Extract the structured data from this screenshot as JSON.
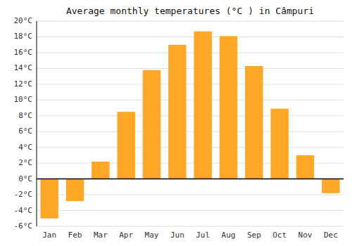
{
  "chart_data": {
    "type": "bar",
    "title": "Average monthly temperatures (°C ) in Câmpuri",
    "categories": [
      "Jan",
      "Feb",
      "Mar",
      "Apr",
      "May",
      "Jun",
      "Jul",
      "Aug",
      "Sep",
      "Oct",
      "Nov",
      "Dec"
    ],
    "values": [
      -5.0,
      -2.8,
      2.2,
      8.5,
      13.8,
      17.0,
      18.7,
      18.1,
      14.3,
      8.9,
      3.0,
      -1.8
    ],
    "color": "#FFA726",
    "ylim": [
      -6,
      20
    ],
    "yticks": [
      {
        "value": -6,
        "label": "-6°C"
      },
      {
        "value": -4,
        "label": "-4°C"
      },
      {
        "value": -2,
        "label": "-2°C"
      },
      {
        "value": 0,
        "label": "0°C"
      },
      {
        "value": 2,
        "label": "2°C"
      },
      {
        "value": 4,
        "label": "4°C"
      },
      {
        "value": 6,
        "label": "6°C"
      },
      {
        "value": 8,
        "label": "8°C"
      },
      {
        "value": 10,
        "label": "10°C"
      },
      {
        "value": 12,
        "label": "12°C"
      },
      {
        "value": 14,
        "label": "14°C"
      },
      {
        "value": 16,
        "label": "16°C"
      },
      {
        "value": 18,
        "label": "18°C"
      },
      {
        "value": 20,
        "label": "20°C"
      }
    ],
    "grid": true
  }
}
